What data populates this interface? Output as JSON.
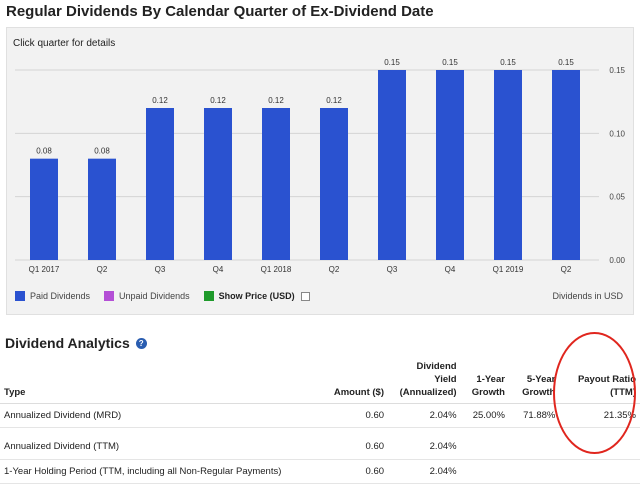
{
  "page_title": "Regular Dividends By Calendar Quarter of Ex-Dividend Date",
  "chart_hint": "Click quarter for details",
  "chart_data": {
    "type": "bar",
    "categories": [
      "Q1 2017",
      "Q2",
      "Q3",
      "Q4",
      "Q1 2018",
      "Q2",
      "Q3",
      "Q4",
      "Q1 2019",
      "Q2"
    ],
    "values": [
      0.08,
      0.08,
      0.12,
      0.12,
      0.12,
      0.12,
      0.15,
      0.15,
      0.15,
      0.15
    ],
    "value_labels": [
      "0.08",
      "0.08",
      "0.12",
      "0.12",
      "0.12",
      "0.12",
      "0.15",
      "0.15",
      "0.15",
      "0.15"
    ],
    "ylim": [
      0,
      0.15
    ],
    "y_ticks": [
      "0.00",
      "0.05",
      "0.10",
      "0.15"
    ],
    "y_tick_values": [
      0,
      0.05,
      0.1,
      0.15
    ],
    "bar_color": "#2a52d0",
    "legend_placement": "bottom-left"
  },
  "legend": {
    "paid": {
      "label": "Paid Dividends",
      "color": "#2a52d0"
    },
    "unpaid": {
      "label": "Unpaid Dividends",
      "color": "#b44fd6"
    },
    "price": {
      "label": "Show Price (USD)",
      "color": "#1f9a2b"
    }
  },
  "units_label": "Dividends in USD",
  "analytics": {
    "title": "Dividend Analytics",
    "help_icon": "?",
    "headers": {
      "type": "Type",
      "amount": "Amount ($)",
      "yield": "Dividend Yield (Annualized)",
      "growth1": "1-Year Growth",
      "growth5": "5-Year Growth",
      "payout": "Payout Ratio (TTM)"
    },
    "rows": [
      {
        "type": "Annualized Dividend (MRD)",
        "amount": "0.60",
        "yield": "2.04%",
        "growth1": "25.00%",
        "growth5": "71.88%",
        "payout": "21.35%"
      },
      {
        "type": "Annualized Dividend (TTM)",
        "amount": "0.60",
        "yield": "2.04%",
        "growth1": "",
        "growth5": "",
        "payout": ""
      },
      {
        "type": "1-Year Holding Period (TTM, including all Non-Regular Payments)",
        "amount": "0.60",
        "yield": "2.04%",
        "growth1": "",
        "growth5": "",
        "payout": ""
      }
    ]
  }
}
